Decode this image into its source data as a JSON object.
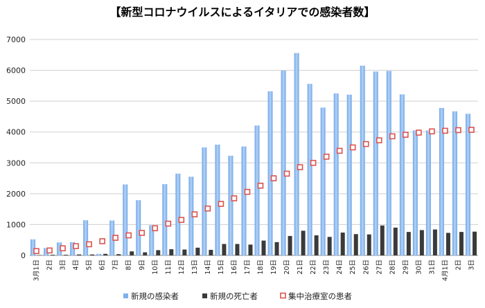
{
  "chart_data": {
    "type": "bar",
    "title": "【新型コロナウイルスによるイタリアでの感染者数】",
    "xlabel": "",
    "ylabel": "",
    "ylim": [
      0,
      7000
    ],
    "yticks": [
      "0",
      "1000",
      "2000",
      "3000",
      "4000",
      "5000",
      "6000",
      "7000"
    ],
    "grid": true,
    "legend_position": "bottom",
    "categories": [
      "3月1日",
      "2日",
      "3日",
      "4日",
      "5日",
      "6日",
      "7日",
      "8日",
      "9日",
      "10日",
      "11日",
      "12日",
      "13日",
      "14日",
      "15日",
      "16日",
      "17日",
      "18日",
      "19日",
      "20日",
      "21日",
      "22日",
      "23日",
      "24日",
      "25日",
      "26日",
      "27日",
      "28日",
      "29日",
      "30日",
      "31日",
      "4月1日",
      "2日",
      "3日"
    ],
    "series": [
      {
        "name": "新規の感染者",
        "kind": "bar",
        "color": "#8fbbee",
        "values": [
          520,
          240,
          420,
          430,
          1140,
          50,
          1130,
          2300,
          1790,
          980,
          2310,
          2650,
          2550,
          3500,
          3590,
          3230,
          3530,
          4210,
          5320,
          5990,
          6560,
          5560,
          4790,
          5250,
          5210,
          6150,
          5960,
          5980,
          5220,
          4050,
          4050,
          4780,
          4670,
          4590
        ]
      },
      {
        "name": "新規の死亡者",
        "kind": "bar",
        "color": "#3a3a3a",
        "values": [
          10,
          20,
          20,
          30,
          30,
          50,
          40,
          130,
          100,
          170,
          200,
          190,
          250,
          180,
          370,
          370,
          350,
          480,
          430,
          630,
          800,
          650,
          600,
          740,
          690,
          680,
          970,
          900,
          760,
          820,
          840,
          730,
          760,
          770
        ]
      },
      {
        "name": "集中治療室の患者",
        "kind": "marker",
        "color": "#d9534f",
        "values": [
          140,
          160,
          230,
          300,
          360,
          460,
          570,
          650,
          730,
          880,
          1030,
          1150,
          1330,
          1520,
          1670,
          1850,
          2060,
          2260,
          2500,
          2650,
          2860,
          3000,
          3200,
          3390,
          3500,
          3610,
          3730,
          3860,
          3910,
          3980,
          4020,
          4040,
          4060,
          4070
        ]
      }
    ]
  }
}
